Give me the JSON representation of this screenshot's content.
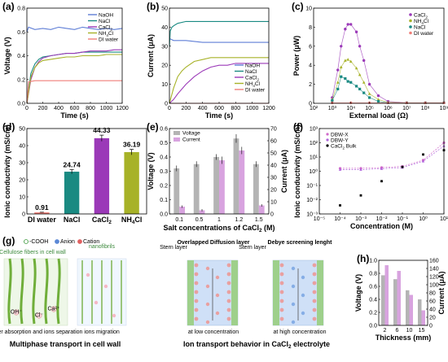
{
  "panel_letters": [
    "(a)",
    "(b)",
    "(c)",
    "(d)",
    "(e)",
    "(f)",
    "(g)",
    "(h)"
  ],
  "colors": {
    "NaOH": "#5f7ed6",
    "NaCl": "#1a8a82",
    "CaCl2": "#9b39b8",
    "NH4Cl": "#a7b228",
    "DI water": "#f07f79",
    "bar_voltage": "#b4b4b4",
    "bar_current": "#d8a3df",
    "dbw_x": "#d06ac9",
    "dbw_y": "#b065dc",
    "cacl2_bulk": "#000000"
  },
  "chart_data": [
    {
      "panel": "a",
      "type": "line",
      "xlabel": "Time (s)",
      "ylabel": "Voltage (V)",
      "xlim": [
        0,
        1200
      ],
      "ylim": [
        0.0,
        0.8
      ],
      "xticks": [
        "0",
        "200",
        "400",
        "600",
        "800",
        "1000",
        "1200"
      ],
      "yticks": [
        "0.0",
        "0.2",
        "0.4",
        "0.6",
        "0.8"
      ],
      "legend": [
        "NaOH",
        "NaCl",
        "CaCl2",
        "NH4Cl",
        "DI water"
      ],
      "legend_text": [
        "NaOH",
        "NaCl",
        "CaCl",
        "NH",
        "DI water"
      ],
      "legend_sub": [
        "",
        "",
        "2",
        "4",
        ""
      ],
      "legend_tail": [
        "",
        "",
        "",
        "Cl",
        ""
      ],
      "series": [
        {
          "name": "NaOH",
          "x": [
            0,
            20,
            100,
            200,
            300,
            400,
            500,
            600,
            700,
            800,
            900,
            1000,
            1100,
            1200
          ],
          "y": [
            0.6,
            0.64,
            0.62,
            0.63,
            0.62,
            0.64,
            0.63,
            0.62,
            0.64,
            0.63,
            0.62,
            0.63,
            0.62,
            0.63
          ]
        },
        {
          "name": "NaCl",
          "x": [
            0,
            50,
            100,
            150,
            200,
            300,
            400,
            500,
            600,
            700,
            800,
            900,
            1000,
            1100,
            1200
          ],
          "y": [
            0.0,
            0.25,
            0.33,
            0.37,
            0.39,
            0.4,
            0.41,
            0.42,
            0.42,
            0.43,
            0.43,
            0.43,
            0.43,
            0.43,
            0.43
          ]
        },
        {
          "name": "CaCl2",
          "x": [
            0,
            50,
            100,
            150,
            200,
            300,
            400,
            500,
            600,
            700,
            800,
            900,
            1000,
            1100,
            1200
          ],
          "y": [
            0.0,
            0.2,
            0.3,
            0.35,
            0.38,
            0.4,
            0.41,
            0.42,
            0.42,
            0.43,
            0.44,
            0.44,
            0.44,
            0.45,
            0.45
          ]
        },
        {
          "name": "NH4Cl",
          "x": [
            0,
            50,
            100,
            150,
            200,
            300,
            400,
            500,
            600,
            700,
            800,
            900,
            1000,
            1100,
            1200
          ],
          "y": [
            0.0,
            0.22,
            0.3,
            0.34,
            0.36,
            0.37,
            0.38,
            0.39,
            0.39,
            0.4,
            0.4,
            0.4,
            0.41,
            0.41,
            0.41
          ]
        },
        {
          "name": "DI water",
          "x": [
            0,
            20,
            100,
            200,
            400,
            600,
            800,
            1000,
            1200
          ],
          "y": [
            0.0,
            0.18,
            0.19,
            0.19,
            0.19,
            0.19,
            0.19,
            0.19,
            0.19
          ]
        }
      ]
    },
    {
      "panel": "b",
      "type": "line",
      "xlabel": "Time (s)",
      "ylabel": "Current (μA)",
      "xlim": [
        0,
        1200
      ],
      "ylim": [
        0,
        50
      ],
      "xticks": [
        "0",
        "200",
        "400",
        "600",
        "800",
        "1000",
        "1200"
      ],
      "yticks": [
        "0",
        "10",
        "20",
        "30",
        "40",
        "50"
      ],
      "legend": [
        "NaOH",
        "NaCl",
        "CaCl2",
        "NH4Cl",
        "DI water"
      ],
      "legend_text": [
        "NaOH",
        "NaCl",
        "CaCl",
        "NH",
        "DI water"
      ],
      "legend_sub": [
        "",
        "",
        "2",
        "4",
        ""
      ],
      "legend_tail": [
        "",
        "",
        "",
        "Cl",
        ""
      ],
      "series": [
        {
          "name": "NaOH",
          "x": [
            0,
            50,
            200,
            400,
            600,
            800,
            1000,
            1200
          ],
          "y": [
            34,
            33,
            33,
            32,
            32,
            32,
            32,
            32
          ]
        },
        {
          "name": "NaCl",
          "x": [
            0,
            10,
            30,
            60,
            100,
            200,
            300,
            400,
            600,
            800,
            1000,
            1200
          ],
          "y": [
            30,
            38,
            40,
            41,
            42,
            43,
            43,
            43,
            43,
            43,
            43,
            43
          ]
        },
        {
          "name": "CaCl2",
          "x": [
            0,
            50,
            100,
            200,
            300,
            400,
            500,
            600,
            700,
            800,
            900,
            1000,
            1100,
            1200
          ],
          "y": [
            0,
            2,
            5,
            10,
            14,
            17,
            19,
            20,
            20,
            21,
            21,
            21,
            21,
            21
          ]
        },
        {
          "name": "NH4Cl",
          "x": [
            0,
            50,
            100,
            150,
            200,
            300,
            400,
            500,
            600,
            800,
            1000,
            1200
          ],
          "y": [
            0,
            8,
            14,
            17,
            19,
            22,
            23,
            24,
            24,
            24,
            24,
            24
          ]
        },
        {
          "name": "DI water",
          "x": [
            0,
            100,
            200,
            400,
            600,
            800,
            1000,
            1200
          ],
          "y": [
            0,
            0,
            0,
            0,
            0,
            0,
            0,
            0
          ]
        }
      ]
    },
    {
      "panel": "c",
      "type": "scatter",
      "xlabel": "External load (Ω)",
      "ylabel": "Power (μW)",
      "xscale": "log",
      "xlim": [
        100,
        1000000000
      ],
      "ylim": [
        0,
        10
      ],
      "xticks": [
        "10²",
        "10³",
        "10⁴",
        "10⁵",
        "10⁶",
        "10⁷",
        "10⁸",
        "10⁹"
      ],
      "yticks": [
        "0",
        "2",
        "4",
        "6",
        "8",
        "10"
      ],
      "legend": [
        "CaCl2",
        "NH4Cl",
        "NaCl",
        "DI water"
      ],
      "legend_text": [
        "CaCl",
        "NH",
        "NaCl",
        "DI water"
      ],
      "legend_sub": [
        "2",
        "4",
        "",
        ""
      ],
      "legend_tail": [
        "",
        "Cl",
        "",
        ""
      ],
      "series": [
        {
          "name": "CaCl2",
          "x": [
            1000,
            2000,
            3000,
            5000,
            7000,
            10000,
            20000,
            30000,
            50000,
            100000,
            300000,
            1000000,
            10000000,
            100000000,
            1000000000
          ],
          "y": [
            0.6,
            3.5,
            6,
            7.8,
            8.3,
            8.3,
            7.5,
            6,
            4.5,
            2,
            0.8,
            0.2,
            0.05,
            0.05,
            0.05
          ]
        },
        {
          "name": "NH4Cl",
          "x": [
            1000,
            2000,
            3000,
            5000,
            7000,
            10000,
            20000,
            30000,
            50000,
            100000,
            300000,
            1000000,
            10000000,
            100000000,
            1000000000
          ],
          "y": [
            0.4,
            2.2,
            3.8,
            4.5,
            4.6,
            4.4,
            3.7,
            3,
            2.2,
            1,
            0.4,
            0.1,
            0.05,
            0.05,
            0.05
          ]
        },
        {
          "name": "NaCl",
          "x": [
            1000,
            2000,
            3000,
            5000,
            7000,
            10000,
            20000,
            30000,
            50000,
            100000,
            300000,
            1000000,
            10000000,
            100000000,
            1000000000
          ],
          "y": [
            0.3,
            1.5,
            2.8,
            2.6,
            2.3,
            2.2,
            1.8,
            1.5,
            1.1,
            0.6,
            0.2,
            0.05,
            0.05,
            0.05,
            0.05
          ]
        },
        {
          "name": "DI water",
          "x": [
            1000,
            10000,
            100000,
            1000000,
            10000000,
            100000000,
            1000000000
          ],
          "y": [
            0.05,
            0.05,
            0.05,
            0.05,
            0.05,
            0.05,
            0.05
          ]
        }
      ]
    },
    {
      "panel": "d",
      "type": "bar",
      "xlabel": "",
      "ylabel": "Ionic conductivity (mS/cm)",
      "ylim": [
        0,
        50
      ],
      "yticks": [
        "0",
        "10",
        "20",
        "30",
        "40",
        "50"
      ],
      "categories": [
        "DI water",
        "NaCl",
        "CaCl2",
        "NH4Cl"
      ],
      "category_text": [
        "DI water",
        "NaCl",
        "CaCl",
        "NH"
      ],
      "category_sub": [
        "",
        "",
        "2",
        "4"
      ],
      "category_tail": [
        "",
        "",
        "",
        "Cl"
      ],
      "values": [
        0.91,
        24.74,
        44.33,
        36.19
      ],
      "errors": [
        0.1,
        1.2,
        1.8,
        1.6
      ],
      "value_labels": [
        "0.91",
        "24.74",
        "44.33",
        "36.19"
      ],
      "bar_colors": [
        "#f07f79",
        "#1a8a82",
        "#9b39b8",
        "#a7b228"
      ]
    },
    {
      "panel": "e",
      "type": "bar",
      "xlabel": "Salt concentrations of CaCl2 (M)",
      "xlabel_text": "Salt concentrations of CaCl",
      "xlabel_sub": "2",
      "xlabel_tail": " (M)",
      "ylabel": "Voltage (V)",
      "ylabel_right": "Current (μA)",
      "ylim": [
        0.0,
        0.6
      ],
      "ylim_right": [
        0,
        70
      ],
      "yticks": [
        "0.0",
        "0.1",
        "0.2",
        "0.3",
        "0.4",
        "0.5",
        "0.6"
      ],
      "yticks_right": [
        "0",
        "10",
        "20",
        "30",
        "40",
        "50",
        "60",
        "70"
      ],
      "categories": [
        "0.1",
        "0.5",
        "1",
        "1.2",
        "1.5"
      ],
      "legend": [
        "Voltage",
        "Current"
      ],
      "series": [
        {
          "name": "Voltage",
          "axis": "left",
          "values": [
            0.32,
            0.35,
            0.4,
            0.53,
            0.35
          ],
          "errors": [
            0.02,
            0.02,
            0.02,
            0.03,
            0.02
          ]
        },
        {
          "name": "Current",
          "axis": "right",
          "values": [
            6,
            3,
            44,
            52,
            7
          ],
          "errors": [
            1,
            1,
            3,
            3,
            1
          ]
        }
      ]
    },
    {
      "panel": "f",
      "type": "scatter",
      "xlabel": "Concentration (M)",
      "ylabel": "Ionic conductivity (mS/cm)",
      "xscale": "log",
      "yscale": "log",
      "xlim": [
        1e-05,
        10
      ],
      "ylim": [
        0.001,
        1000
      ],
      "xticks": [
        "10⁻⁵",
        "10⁻⁴",
        "10⁻³",
        "10⁻²",
        "10⁻¹",
        "10⁰",
        "10¹"
      ],
      "yticks": [
        "10⁻³",
        "10⁻²",
        "10⁻¹",
        "10⁰",
        "10¹",
        "10²",
        "10³"
      ],
      "legend": [
        "DBW-X",
        "DBW-Y",
        "CaCl2 Bulk"
      ],
      "legend_text": [
        "DBW-X",
        "DBW-Y",
        "CaCl"
      ],
      "legend_sub": [
        "",
        "",
        "2"
      ],
      "legend_tail": [
        "",
        " ",
        " Bulk"
      ],
      "series": [
        {
          "name": "DBW-X",
          "x": [
            0.0001,
            0.001,
            0.01,
            0.1,
            1,
            10
          ],
          "y": [
            1.6,
            1.6,
            1.8,
            2.2,
            6,
            100
          ]
        },
        {
          "name": "DBW-Y",
          "x": [
            0.0001,
            0.001,
            0.01,
            0.1,
            1,
            10
          ],
          "y": [
            1.3,
            1.3,
            1.5,
            1.8,
            5,
            60
          ]
        },
        {
          "name": "CaCl2 Bulk",
          "x": [
            0.0001,
            0.001,
            0.01,
            0.1,
            1,
            10
          ],
          "y": [
            0.004,
            0.02,
            0.2,
            2,
            15,
            30
          ]
        }
      ]
    },
    {
      "panel": "h",
      "type": "bar",
      "xlabel": "Thickness (mm)",
      "ylabel": "Voltage (V)",
      "ylabel_right": "Current (μA)",
      "ylim": [
        0.0,
        1.0
      ],
      "ylim_right": [
        0,
        160
      ],
      "yticks": [
        "0.0",
        "0.2",
        "0.4",
        "0.6",
        "0.8",
        "1.0"
      ],
      "yticks_right": [
        "0",
        "20",
        "40",
        "60",
        "80",
        "100",
        "120",
        "140",
        "160"
      ],
      "categories": [
        "2",
        "6",
        "10",
        "15"
      ],
      "series": [
        {
          "name": "Voltage",
          "axis": "left",
          "values": [
            0.77,
            0.71,
            0.54,
            0.4
          ]
        },
        {
          "name": "Current",
          "axis": "right",
          "values": [
            148,
            134,
            75,
            37
          ]
        }
      ]
    }
  ],
  "diagram_g": {
    "legend": [
      "-COOH",
      "Anion",
      "Cation"
    ],
    "cellulose_label": "Cellulose fibers in cell wall",
    "nanofibrils_label": "nanofibrils",
    "water_caption": "water absorption and ions separation",
    "migration_caption": "ions migration",
    "left_title": "Multiphase transport in cell wall",
    "right_title_text": "Ion transport behavior in CaCl",
    "right_title_sub": "2",
    "right_title_tail": " electrolyte",
    "stern_left": "Stern layer",
    "overlapped": "Overlapped Diffusion layer",
    "stern_mid": "Stern layer",
    "debye": "Debye screening lenght",
    "low_conc": "at low concentration",
    "high_conc": "at high concentration",
    "ion_labels": [
      "OH⁻",
      "Cl⁻",
      "Ca²⁺"
    ]
  }
}
